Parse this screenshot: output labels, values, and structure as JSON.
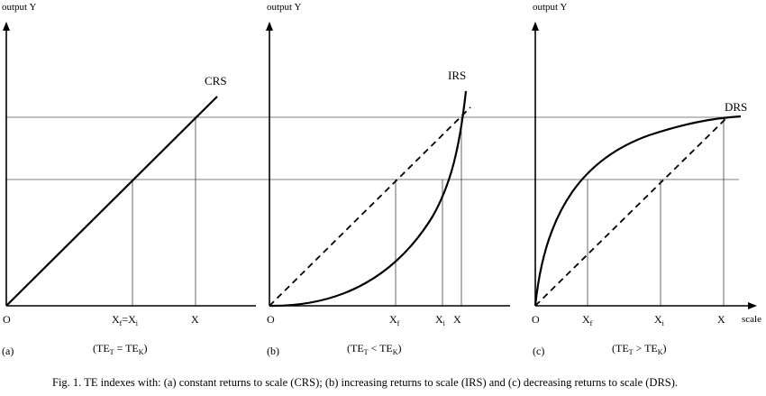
{
  "panels": [
    {
      "id": "a",
      "y_axis_label": "output Y",
      "curve_label": "CRS",
      "origin_label": "O",
      "tick_labels": [
        "Xf = Xi",
        "X"
      ],
      "tick_xf": "X",
      "tick_xf_sub": "f",
      "tick_eq": "=X",
      "tick_eq_sub": "i",
      "tick_x": "X",
      "panel_label": "(a)",
      "condition": {
        "pre": "(TE",
        "sub1": "T",
        "mid": " = TE",
        "sub2": "K",
        "post": ")"
      }
    },
    {
      "id": "b",
      "y_axis_label": "output Y",
      "curve_label": "IRS",
      "origin_label": "O",
      "tick_xf": "X",
      "tick_xf_sub": "f",
      "tick_xi": "X",
      "tick_xi_sub": "i",
      "tick_x": "X",
      "panel_label": "(b)",
      "condition": {
        "pre": "(TE",
        "sub1": "T",
        "mid": " < TE",
        "sub2": "K",
        "post": ")"
      }
    },
    {
      "id": "c",
      "y_axis_label": "output Y",
      "curve_label": "DRS",
      "origin_label": "O",
      "tick_xf": "X",
      "tick_xf_sub": "f",
      "tick_xi": "X",
      "tick_xi_sub": "i",
      "tick_x": "X",
      "x_axis_label": "scale",
      "panel_label": "(c)",
      "condition": {
        "pre": "(TE",
        "sub1": "T",
        "mid": " > TE",
        "sub2": "K",
        "post": ")"
      }
    }
  ],
  "caption": "Fig. 1. TE indexes with: (a) constant returns to scale (CRS); (b) increasing returns to scale (IRS) and (c) decreasing returns to scale (DRS)."
}
